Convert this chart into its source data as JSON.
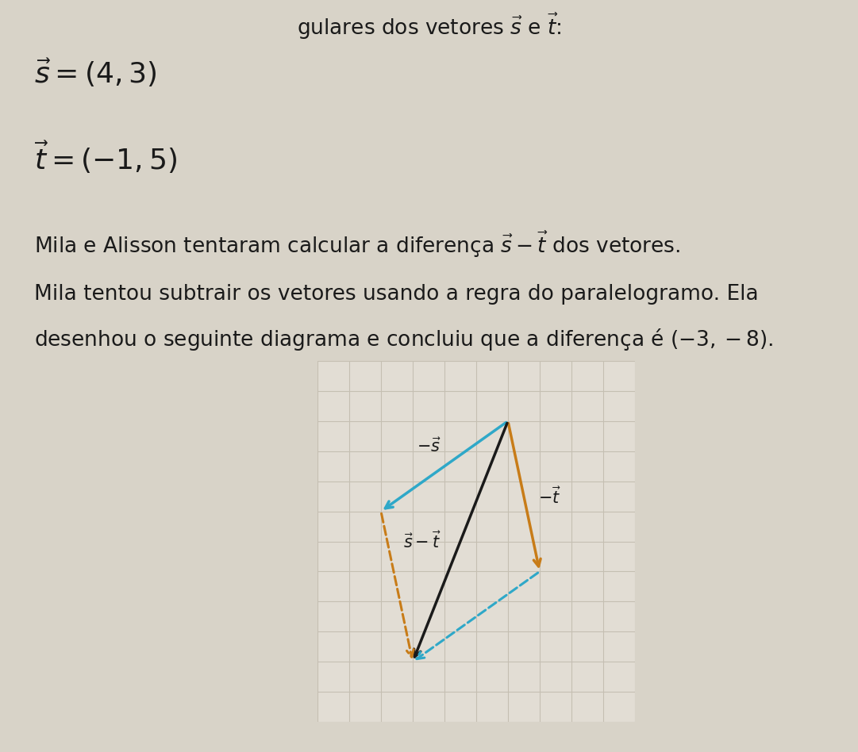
{
  "fig_bg": "#d8d3c8",
  "plot_bg": "#e2ddd4",
  "grid_color": "#c5bfb2",
  "neg_s_color": "#2fa8c8",
  "neg_t_color": "#c87c18",
  "result_color": "#1a1a1a",
  "dashed_orange_color": "#c87c18",
  "dashed_teal_color": "#2fa8c8",
  "text_color": "#1a1a1a",
  "T": [
    4,
    4
  ],
  "neg_s": [
    -4,
    -3
  ],
  "neg_t": [
    1,
    -5
  ],
  "x_min": -2,
  "x_max": 8,
  "y_min": -6,
  "y_max": 6
}
